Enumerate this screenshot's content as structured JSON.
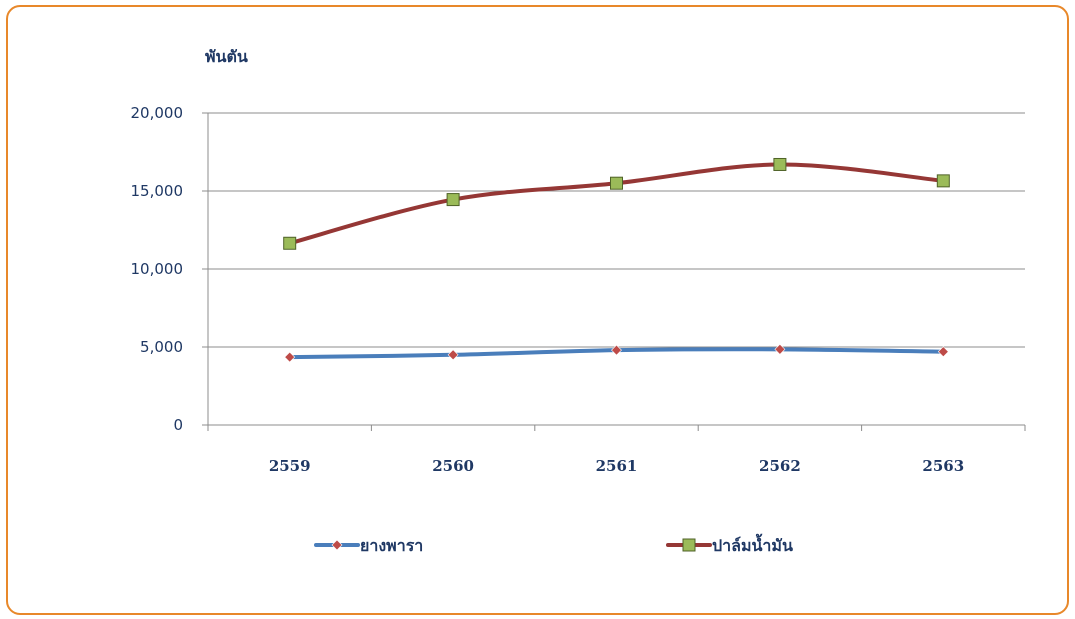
{
  "chart_data": {
    "type": "line",
    "unit_label": "พันตัน",
    "categories": [
      "2559",
      "2560",
      "2561",
      "2562",
      "2563"
    ],
    "yticks": [
      "0",
      "5,000",
      "10,000",
      "15,000",
      "20,000"
    ],
    "ylim": [
      0,
      20000
    ],
    "grid": true,
    "legend_position": "bottom",
    "series": [
      {
        "name": "ยางพารา",
        "values": [
          4350,
          4500,
          4800,
          4850,
          4700
        ],
        "line_color": "#4a7ebb",
        "marker": "diamond",
        "marker_color": "#be4b48"
      },
      {
        "name": "ปาล์มน้ำมัน",
        "values": [
          11650,
          14450,
          15500,
          16700,
          15650
        ],
        "line_color": "#953735",
        "marker": "square",
        "marker_color": "#9bbb59"
      }
    ]
  }
}
